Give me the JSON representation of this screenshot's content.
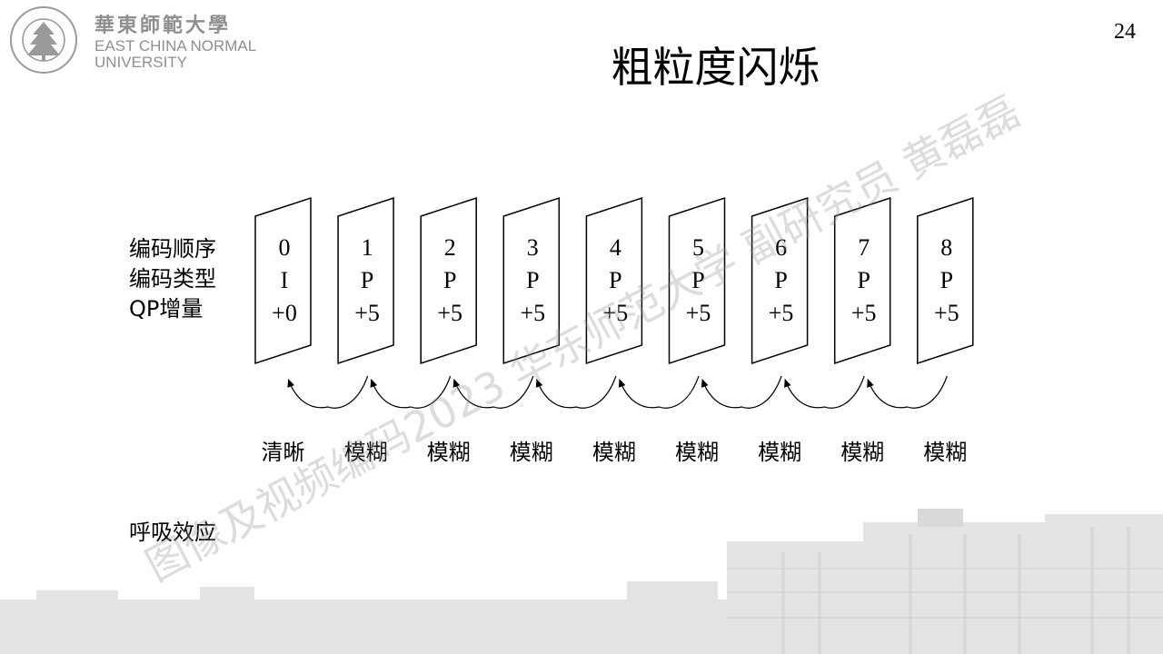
{
  "page_number": "24",
  "title": "粗粒度闪烁",
  "logo": {
    "cn": "華東師範大學",
    "en_line1": "EAST CHINA NORMAL",
    "en_line2": "UNIVERSITY",
    "seal_text": "EAST CHINA NORMAL UNIVERSITY"
  },
  "row_labels": [
    "编码顺序",
    "编码类型",
    "QP增量"
  ],
  "frames": [
    {
      "order": "0",
      "type": "I",
      "qp": "+0",
      "quality": "清晰"
    },
    {
      "order": "1",
      "type": "P",
      "qp": "+5",
      "quality": "模糊"
    },
    {
      "order": "2",
      "type": "P",
      "qp": "+5",
      "quality": "模糊"
    },
    {
      "order": "3",
      "type": "P",
      "qp": "+5",
      "quality": "模糊"
    },
    {
      "order": "4",
      "type": "P",
      "qp": "+5",
      "quality": "模糊"
    },
    {
      "order": "5",
      "type": "P",
      "qp": "+5",
      "quality": "模糊"
    },
    {
      "order": "6",
      "type": "P",
      "qp": "+5",
      "quality": "模糊"
    },
    {
      "order": "7",
      "type": "P",
      "qp": "+5",
      "quality": "模糊"
    },
    {
      "order": "8",
      "type": "P",
      "qp": "+5",
      "quality": "模糊"
    }
  ],
  "effect_label": "呼吸效应",
  "watermark": "图像及视频编码2023 华东师范大学 副研究员 黄磊磊",
  "colors": {
    "text": "#000000",
    "logo_gray": "#8f8f8f",
    "watermark": "#969696"
  }
}
